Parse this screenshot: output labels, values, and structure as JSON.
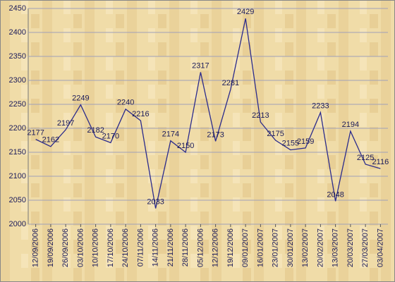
{
  "chart_data": {
    "type": "line",
    "categories": [
      "12/09/2006",
      "19/09/2006",
      "26/09/2006",
      "03/10/2006",
      "10/10/2006",
      "17/10/2006",
      "24/10/2006",
      "07/11/2006",
      "14/11/2006",
      "21/11/2006",
      "28/11/2006",
      "05/12/2006",
      "12/12/2006",
      "19/12/2006",
      "09/01/2007",
      "16/01/2007",
      "23/01/2007",
      "30/01/2007",
      "13/02/2007",
      "20/02/2007",
      "13/03/2007",
      "20/03/2007",
      "27/03/2007",
      "03/04/2007"
    ],
    "series": [
      {
        "color": "#2b2b8c",
        "values": [
          2177,
          2162,
          2197,
          2249,
          2182,
          2170,
          2240,
          2216,
          2033,
          2174,
          2150,
          2317,
          2173,
          2281,
          2429,
          2213,
          2175,
          2155,
          2159,
          2233,
          2048,
          2194,
          2125,
          2116
        ]
      }
    ],
    "ylim": [
      2000,
      2450
    ],
    "yticks": [
      2000,
      2050,
      2100,
      2150,
      2200,
      2250,
      2300,
      2350,
      2400,
      2450
    ],
    "grid": true
  }
}
